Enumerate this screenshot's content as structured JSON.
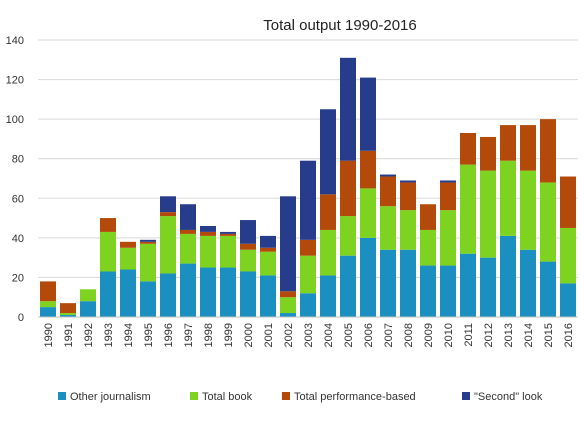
{
  "chart_data": {
    "type": "bar",
    "stacked": true,
    "title": "Total output  1990-2016",
    "xlabel": "",
    "ylabel": "",
    "ylim": [
      0,
      140
    ],
    "yticks": [
      0,
      20,
      40,
      60,
      80,
      100,
      120,
      140
    ],
    "grid": true,
    "legend_position": "bottom",
    "categories": [
      "1990",
      "1991",
      "1992",
      "1993",
      "1994",
      "1995",
      "1996",
      "1997",
      "1998",
      "1999",
      "2000",
      "2001",
      "2002",
      "2003",
      "2004",
      "2005",
      "2006",
      "2007",
      "2008",
      "2009",
      "2010",
      "2011",
      "2012",
      "2013",
      "2014",
      "2015",
      "2016"
    ],
    "series": [
      {
        "name": "Other journalism",
        "color": "#1a8fc0",
        "values": [
          5,
          1,
          8,
          23,
          24,
          18,
          22,
          27,
          25,
          25,
          23,
          21,
          2,
          12,
          21,
          31,
          40,
          34,
          34,
          26,
          26,
          32,
          30,
          41,
          34,
          28,
          17
        ]
      },
      {
        "name": "Total book",
        "color": "#7ed321",
        "values": [
          3,
          1,
          6,
          20,
          11,
          19,
          29,
          15,
          16,
          16,
          11,
          12,
          8,
          19,
          23,
          20,
          25,
          22,
          20,
          18,
          28,
          45,
          44,
          38,
          40,
          40,
          28
        ]
      },
      {
        "name": "Total  performance-based",
        "color": "#b34a0a",
        "values": [
          10,
          5,
          0,
          7,
          3,
          1,
          2,
          2,
          2,
          1,
          3,
          2,
          3,
          8,
          18,
          28,
          19,
          15,
          14,
          13,
          14,
          16,
          17,
          18,
          23,
          32,
          26
        ]
      },
      {
        "name": "\"Second\" look",
        "color": "#283c8c",
        "values": [
          0,
          0,
          0,
          0,
          0,
          1,
          8,
          13,
          3,
          1,
          12,
          6,
          48,
          40,
          43,
          52,
          37,
          1,
          1,
          0,
          1,
          0,
          0,
          0,
          0,
          0,
          0
        ]
      }
    ]
  }
}
